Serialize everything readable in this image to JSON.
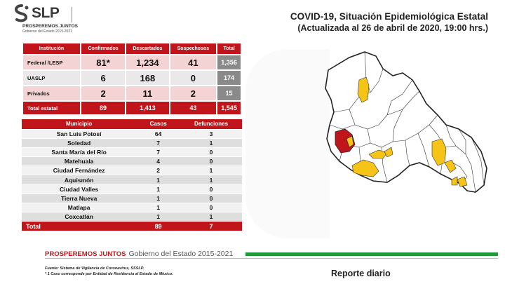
{
  "logo": {
    "name": "SLP",
    "slogan": "PROSPEREMOS JUNTOS",
    "subtitle": "Gobierno del Estado 2015-2021"
  },
  "header": {
    "title": "COVID-19, Situación Epidemiológica Estatal",
    "updated": "(Actualizada al 26 de abril de 2020, 19:00 hrs.)"
  },
  "summary": {
    "columns": [
      "Institución",
      "Confirmados",
      "Descartados",
      "Sospechosos",
      "Total"
    ],
    "rows": [
      {
        "label": "Federal /LESP",
        "confirmados": "81*",
        "descartados": "1,234",
        "sospechosos": "41",
        "total": "1,356"
      },
      {
        "label": "UASLP",
        "confirmados": "6",
        "descartados": "168",
        "sospechosos": "0",
        "total": "174"
      },
      {
        "label": "Privados",
        "confirmados": "2",
        "descartados": "11",
        "sospechosos": "2",
        "total": "15"
      }
    ],
    "total": {
      "label": "Total estatal",
      "confirmados": "89",
      "descartados": "1,413",
      "sospechosos": "43",
      "total": "1,545"
    }
  },
  "municipios": {
    "columns": [
      "Municipio",
      "Casos",
      "Defunciones"
    ],
    "rows": [
      {
        "name": "San Luis Potosí",
        "casos": "64",
        "defunciones": "3"
      },
      {
        "name": "Soledad",
        "casos": "7",
        "defunciones": "1"
      },
      {
        "name": "Santa María del Río",
        "casos": "7",
        "defunciones": "0"
      },
      {
        "name": "Matehuala",
        "casos": "4",
        "defunciones": "0"
      },
      {
        "name": "Ciudad Fernández",
        "casos": "2",
        "defunciones": "1"
      },
      {
        "name": "Aquismón",
        "casos": "1",
        "defunciones": "1"
      },
      {
        "name": "Ciudad Valles",
        "casos": "1",
        "defunciones": "0"
      },
      {
        "name": "Tierra Nueva",
        "casos": "1",
        "defunciones": "0"
      },
      {
        "name": "Matlapa",
        "casos": "1",
        "defunciones": "0"
      },
      {
        "name": "Coxcatlán",
        "casos": "1",
        "defunciones": "1"
      }
    ],
    "total": {
      "label": "Total",
      "casos": "89",
      "defunciones": "7"
    }
  },
  "footer": {
    "slogan": "PROSPEREMOS JUNTOS",
    "government": "Gobierno del Estado 2015-2021",
    "note1": "Fuente: Sistema de Vigilancia de Coronavirus, SSSLP.",
    "note2": "* 1 Caso corresponde por Entidad de Residencia al Estado de México.",
    "report": "Reporte diario"
  },
  "colors": {
    "primary_red": "#c0161b",
    "map_red": "#c0161b",
    "map_yellow": "#f5c417",
    "green": "#1f9a3a"
  }
}
